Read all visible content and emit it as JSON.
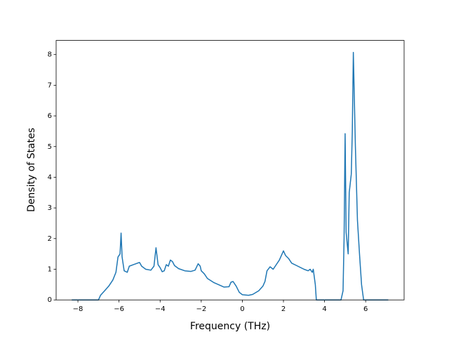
{
  "chart_data": {
    "type": "line",
    "xlabel": "Frequency (THz)",
    "ylabel": "Density of States",
    "xlim": [
      -9.06,
      7.87
    ],
    "ylim": [
      0,
      8.46
    ],
    "xticks": [
      {
        "value": -8,
        "label": "−8"
      },
      {
        "value": -6,
        "label": "−6"
      },
      {
        "value": -4,
        "label": "−4"
      },
      {
        "value": -2,
        "label": "−2"
      },
      0,
      2,
      4,
      6
    ],
    "yticks": [
      0,
      1,
      2,
      3,
      4,
      5,
      6,
      7,
      8
    ],
    "color": "#1f77b4",
    "x": [
      -8.3,
      -7.0,
      -6.9,
      -6.7,
      -6.5,
      -6.3,
      -6.15,
      -6.05,
      -5.95,
      -5.9,
      -5.85,
      -5.75,
      -5.6,
      -5.5,
      -5.3,
      -5.1,
      -5.0,
      -4.9,
      -4.7,
      -4.45,
      -4.3,
      -4.2,
      -4.1,
      -4.0,
      -3.9,
      -3.8,
      -3.7,
      -3.6,
      -3.5,
      -3.4,
      -3.3,
      -3.1,
      -2.8,
      -2.5,
      -2.3,
      -2.15,
      -2.05,
      -2.0,
      -1.85,
      -1.7,
      -1.4,
      -1.1,
      -0.9,
      -0.65,
      -0.55,
      -0.45,
      -0.3,
      -0.15,
      0,
      0.3,
      0.5,
      0.8,
      1.0,
      1.1,
      1.2,
      1.35,
      1.5,
      1.6,
      1.8,
      2.0,
      2.1,
      2.25,
      2.4,
      2.7,
      3.0,
      3.2,
      3.3,
      3.4,
      3.45,
      3.55,
      3.6,
      4.8,
      4.9,
      4.95,
      5.0,
      5.05,
      5.15,
      5.2,
      5.3,
      5.35,
      5.4,
      5.5,
      5.6,
      5.7,
      5.8,
      5.9,
      7.1
    ],
    "values": [
      0,
      0,
      0.15,
      0.3,
      0.45,
      0.65,
      0.9,
      1.4,
      1.5,
      2.18,
      1.4,
      0.95,
      0.9,
      1.1,
      1.15,
      1.2,
      1.22,
      1.1,
      1.0,
      0.97,
      1.1,
      1.7,
      1.15,
      1.05,
      0.92,
      0.95,
      1.15,
      1.1,
      1.3,
      1.25,
      1.12,
      1.02,
      0.95,
      0.93,
      0.97,
      1.18,
      1.1,
      0.95,
      0.85,
      0.7,
      0.57,
      0.48,
      0.42,
      0.43,
      0.58,
      0.6,
      0.45,
      0.25,
      0.17,
      0.15,
      0.18,
      0.3,
      0.45,
      0.6,
      0.95,
      1.08,
      1.0,
      1.1,
      1.3,
      1.6,
      1.45,
      1.35,
      1.2,
      1.1,
      1.0,
      0.95,
      1.0,
      0.9,
      1.0,
      0.5,
      0,
      0,
      0.3,
      2.0,
      5.42,
      2.2,
      1.5,
      3.5,
      4.1,
      5.5,
      8.07,
      5.0,
      2.6,
      1.5,
      0.5,
      0,
      0
    ]
  }
}
